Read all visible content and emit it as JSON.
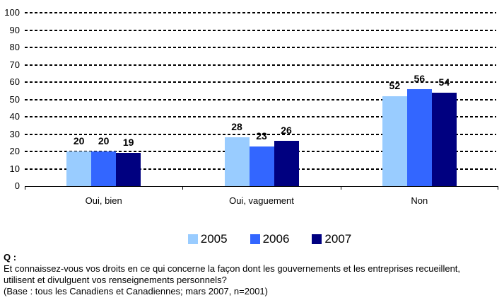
{
  "chart_data": {
    "type": "bar",
    "title": "",
    "categories": [
      "Oui, bien",
      "Oui, vaguement",
      "Non"
    ],
    "series": [
      {
        "name": "2005",
        "color": "#99CCFF",
        "values": [
          20,
          28,
          52
        ]
      },
      {
        "name": "2006",
        "color": "#3366FF",
        "values": [
          20,
          23,
          56
        ]
      },
      {
        "name": "2007",
        "color": "#000080",
        "values": [
          19,
          26,
          54
        ]
      }
    ],
    "xlabel": "",
    "ylabel": "",
    "ylim": [
      0,
      100
    ],
    "ytick_step": 10,
    "yticks": [
      0,
      10,
      20,
      30,
      40,
      50,
      60,
      70,
      80,
      90,
      100
    ],
    "grid": "horizontal-dashed",
    "grid_color": "#000000",
    "axis_color": "#000000",
    "legend_position": "bottom",
    "value_labels": "above-bars"
  },
  "footer": {
    "q_label": "Q :",
    "question_lines": [
      "Et connaissez-vous vos droits en ce qui concerne la façon dont les gouvernements et les entreprises recueillent,",
      "utilisent et divulguent vos renseignements personnels?"
    ],
    "base": "(Base : tous les Canadiens et Canadiennes; mars 2007, n=2001)"
  }
}
